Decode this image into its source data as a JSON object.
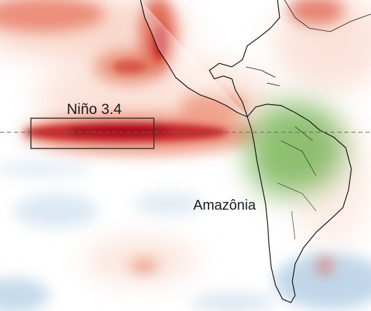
{
  "labels": {
    "nino": "Niño 3.4",
    "amazonia": "Amazônia"
  }
}
